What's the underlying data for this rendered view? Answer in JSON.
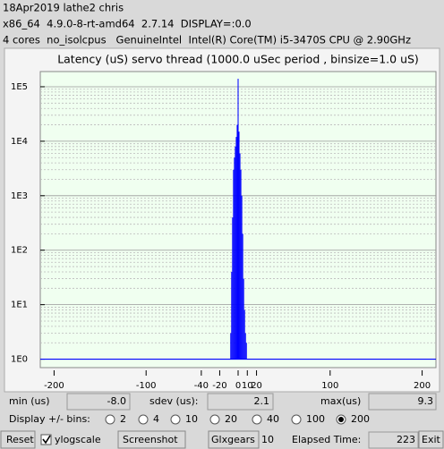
{
  "header": {
    "line1": "18Apr2019 lathe2 chris",
    "line2": "x86_64  4.9.0-8-rt-amd64  2.7.14  DISPLAY=:0.0",
    "line3": "4 cores  no_isolcpus   GenuineIntel  Intel(R) Core(TM) i5-3470S CPU @ 2.90GHz"
  },
  "chart_data": {
    "type": "histogram",
    "title": "Latency (uS) servo thread (1000.0 uSec period , binsize=1.0 uS)",
    "bins": [
      -8.5,
      -7.5,
      -6.5,
      -5.5,
      -4.5,
      -3.5,
      -2.5,
      -1.5,
      -0.5,
      0.5,
      1.5,
      2.5,
      3.5,
      4.5,
      5.5,
      6.5,
      7.5,
      8.5,
      9.5
    ],
    "values": [
      3,
      40,
      400,
      3000,
      5000,
      8000,
      12000,
      20000,
      140000,
      15000,
      6000,
      3000,
      1000,
      200,
      30,
      8,
      3,
      2
    ],
    "color": "#0000ff",
    "background": "#f0fff0",
    "xlim": [
      -215,
      215
    ],
    "xticks": [
      -200,
      -100,
      -40,
      -20,
      0,
      10,
      20,
      100,
      200
    ],
    "ylim": [
      0.7,
      190000
    ],
    "yscale": "log",
    "yticks": [
      {
        "value": 1,
        "label": "1E0"
      },
      {
        "value": 10,
        "label": "1E1"
      },
      {
        "value": 100,
        "label": "1E2"
      },
      {
        "value": 1000,
        "label": "1E3"
      },
      {
        "value": 10000,
        "label": "1E4"
      },
      {
        "value": 100000,
        "label": "1E5"
      }
    ],
    "minor_yticks": [
      2,
      3,
      4,
      5,
      6,
      7,
      8,
      9,
      20,
      30,
      40,
      50,
      60,
      70,
      80,
      90,
      200,
      300,
      400,
      500,
      600,
      700,
      800,
      900,
      2000,
      3000,
      4000,
      5000,
      6000,
      7000,
      8000,
      9000,
      20000,
      30000,
      40000,
      50000,
      60000,
      70000,
      80000,
      90000
    ],
    "grid": true
  },
  "stats": {
    "min_label": "min (us)",
    "min_value": "-8.0",
    "sdev_label": "sdev (us):",
    "sdev_value": "2.1",
    "max_label": "max(us)",
    "max_value": "9.3"
  },
  "bins_control": {
    "label": "Display +/- bins:",
    "options": [
      "2",
      "4",
      "10",
      "20",
      "40",
      "100",
      "200"
    ],
    "selected_index": 6
  },
  "toolbar": {
    "reset": "Reset",
    "ylogscale": "ylogscale",
    "ylogscale_checked": true,
    "screenshot": "Screenshot",
    "glxgears": "Glxgears",
    "glxgears_count": "10",
    "elapsed_label": "Elapsed Time:",
    "elapsed_value": "223",
    "exit": "Exit"
  }
}
